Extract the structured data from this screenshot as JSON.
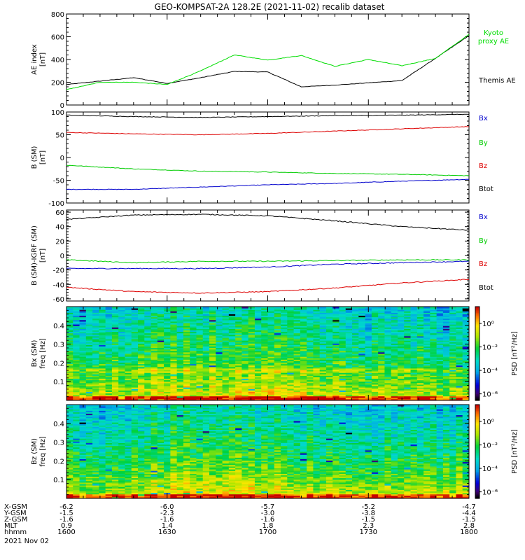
{
  "title": "GEO-KOMPSAT-2A 128.2E (2021-11-02) recalib dataset",
  "colors": {
    "black": "#000000",
    "red": "#dd0000",
    "green": "#00cc00",
    "blue": "#0000cc",
    "kyoto": "#00dd00"
  },
  "panels": [
    {
      "ylabel": [
        "AE index",
        "[nT]"
      ],
      "ylim": [
        0,
        800
      ],
      "yticks": [
        "0",
        "200",
        "400",
        "600",
        "800"
      ],
      "yticks_values": [
        0,
        200,
        400,
        600,
        800
      ],
      "legend": [
        {
          "text": "Kyoto",
          "color": "#00dd00"
        },
        {
          "text": "proxy AE",
          "color": "#00dd00"
        },
        {
          "text": "Themis AE",
          "color": "#000000"
        }
      ]
    },
    {
      "ylabel": [
        "B (SM)",
        "[nT]"
      ],
      "ylim": [
        -100,
        100
      ],
      "yticks": [
        "-100",
        "-50",
        "0",
        "50",
        "100"
      ],
      "yticks_values": [
        -100,
        -50,
        0,
        50,
        100
      ],
      "legend": [
        {
          "text": "Bx",
          "color": "#0000cc"
        },
        {
          "text": "By",
          "color": "#00cc00"
        },
        {
          "text": "Bz",
          "color": "#dd0000"
        },
        {
          "text": "Btot",
          "color": "#000000"
        }
      ]
    },
    {
      "ylabel": [
        "B (SM)-IGRF (SM)",
        "[nT]"
      ],
      "ylim": [
        -63,
        63
      ],
      "yticks": [
        "-60",
        "-40",
        "-20",
        "0",
        "20",
        "40",
        "60"
      ],
      "yticks_values": [
        -60,
        -40,
        -20,
        0,
        20,
        40,
        60
      ],
      "legend": [
        {
          "text": "Bx",
          "color": "#0000cc"
        },
        {
          "text": "By",
          "color": "#00cc00"
        },
        {
          "text": "Bz",
          "color": "#dd0000"
        },
        {
          "text": "Btot",
          "color": "#000000"
        }
      ]
    },
    {
      "ylabel": [
        "Bx (SM)",
        "freq [Hz]"
      ],
      "ylim": [
        0,
        0.5
      ],
      "yticks": [
        "0.1",
        "0.2",
        "0.3",
        "0.4"
      ],
      "yticks_values": [
        0.1,
        0.2,
        0.3,
        0.4
      ],
      "colorbar_label": "PSD [nT²/Hz]",
      "colorbar_ticks": [
        "10⁰",
        "10⁻²",
        "10⁻⁴",
        "10⁻⁶"
      ]
    },
    {
      "ylabel": [
        "Bz (SM)",
        "freq [Hz]"
      ],
      "ylim": [
        0,
        0.5
      ],
      "yticks": [
        "0.1",
        "0.2",
        "0.3",
        "0.4"
      ],
      "yticks_values": [
        0.1,
        0.2,
        0.3,
        0.4
      ],
      "colorbar_label": "PSD [nT²/Hz]",
      "colorbar_ticks": [
        "10⁰",
        "10⁻²",
        "10⁻⁴",
        "10⁻⁶"
      ]
    }
  ],
  "ephemeris": {
    "labels": [
      "X-GSM",
      "Y-GSM",
      "Z-GSM",
      "MLT",
      "hhmm"
    ],
    "date": "2021 Nov 02",
    "columns": [
      [
        "-6.2",
        "-1.5",
        "-1.6",
        "0.9",
        "1600"
      ],
      [
        "-6.0",
        "-2.3",
        "-1.6",
        "1.4",
        "1630"
      ],
      [
        "-5.7",
        "-3.0",
        "-1.6",
        "1.8",
        "1700"
      ],
      [
        "-5.2",
        "-3.8",
        "-1.5",
        "2.3",
        "1730"
      ],
      [
        "-4.7",
        "-4.4",
        "-1.5",
        "2.8",
        "1800"
      ]
    ]
  },
  "chart_data": [
    {
      "type": "line",
      "ylabel": "AE index [nT]",
      "x_label_ticks": [
        "1600",
        "1630",
        "1700",
        "1730",
        "1800"
      ],
      "x": [
        0,
        10,
        20,
        30,
        40,
        50,
        60,
        70,
        80,
        90,
        100,
        110,
        120
      ],
      "ylim": [
        0,
        800
      ],
      "series": [
        {
          "name": "Themis AE",
          "color": "#000000",
          "values": [
            180,
            210,
            240,
            190,
            240,
            295,
            290,
            160,
            175,
            195,
            215,
            410,
            610
          ]
        },
        {
          "name": "Kyoto proxy AE",
          "color": "#00dd00",
          "values": [
            135,
            200,
            200,
            180,
            300,
            440,
            395,
            435,
            340,
            400,
            345,
            410,
            620
          ]
        }
      ]
    },
    {
      "type": "line",
      "ylabel": "B (SM) [nT]",
      "x": [
        0,
        20,
        40,
        60,
        80,
        100,
        120
      ],
      "ylim": [
        -100,
        100
      ],
      "series": [
        {
          "name": "Bx",
          "color": "#0000cc",
          "values": [
            -70,
            -70,
            -65,
            -60,
            -57,
            -52,
            -48
          ]
        },
        {
          "name": "By",
          "color": "#00cc00",
          "values": [
            -17,
            -25,
            -30,
            -32,
            -35,
            -37,
            -40
          ]
        },
        {
          "name": "Bz",
          "color": "#dd0000",
          "values": [
            55,
            52,
            50,
            53,
            58,
            63,
            68
          ]
        },
        {
          "name": "Btot",
          "color": "#000000",
          "values": [
            93,
            90,
            88,
            90,
            92,
            93,
            95
          ]
        }
      ]
    },
    {
      "type": "line",
      "ylabel": "B (SM)-IGRF (SM) [nT]",
      "x": [
        0,
        20,
        40,
        60,
        80,
        100,
        120
      ],
      "ylim": [
        -63,
        63
      ],
      "series": [
        {
          "name": "Bx",
          "color": "#0000cc",
          "values": [
            -18,
            -18,
            -18,
            -16,
            -12,
            -10,
            -8
          ]
        },
        {
          "name": "By",
          "color": "#00cc00",
          "values": [
            -6,
            -10,
            -8,
            -8,
            -7,
            -6,
            -6
          ]
        },
        {
          "name": "Bz",
          "color": "#dd0000",
          "values": [
            -44,
            -50,
            -52,
            -50,
            -45,
            -38,
            -33
          ]
        },
        {
          "name": "Btot",
          "color": "#000000",
          "values": [
            50,
            56,
            57,
            55,
            48,
            40,
            35
          ]
        }
      ]
    },
    {
      "type": "heatmap",
      "ylabel": "Bx (SM) freq [Hz]",
      "ylim": [
        0,
        0.5
      ],
      "colorbar": "PSD [nT²/Hz]"
    },
    {
      "type": "heatmap",
      "ylabel": "Bz (SM) freq [Hz]",
      "ylim": [
        0,
        0.5
      ],
      "colorbar": "PSD [nT²/Hz]"
    }
  ]
}
